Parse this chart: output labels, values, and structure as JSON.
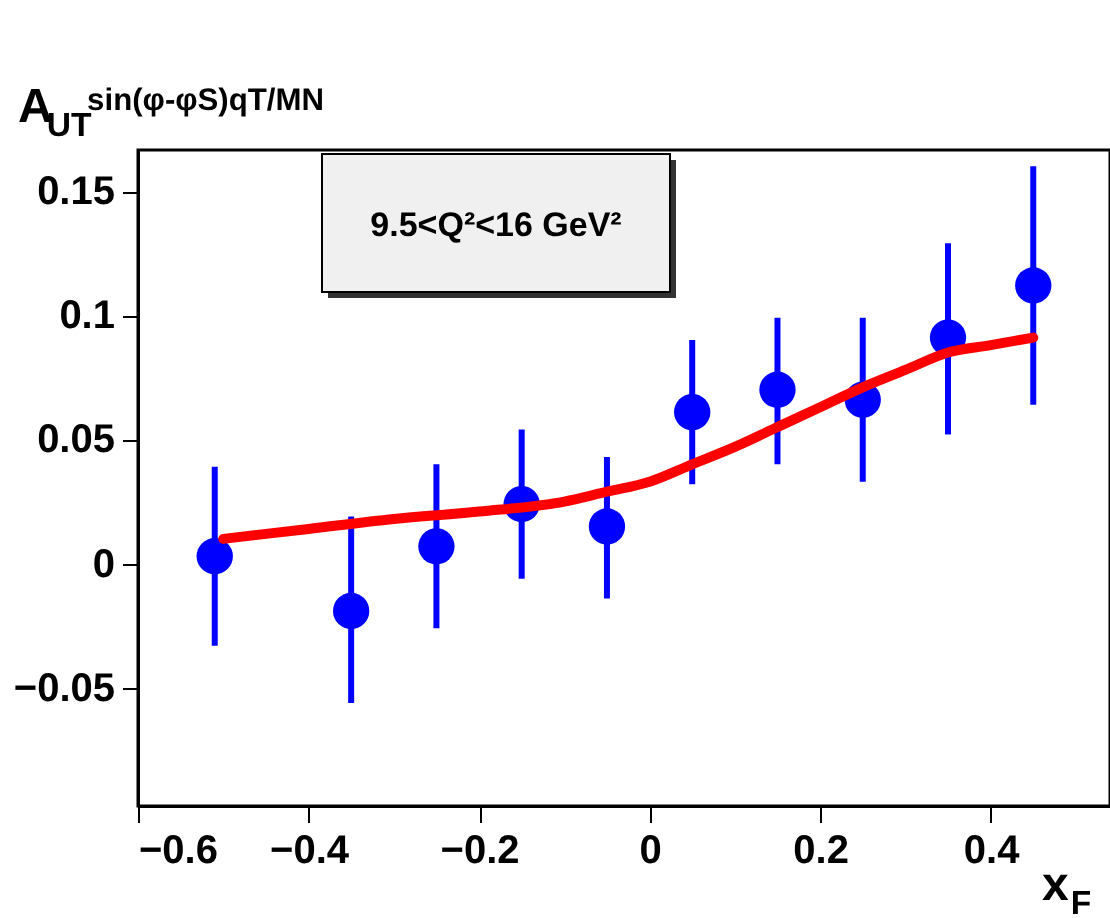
{
  "chart_data": {
    "type": "scatter",
    "xlabel": "x$_{F}$",
    "ylabel": "A$_{UT}$$^{sin(φ-φS)qT/MN}$",
    "annotations": [
      "9.5<Q²<16 GeV²"
    ],
    "xlim": [
      -0.6,
      0.54
    ],
    "ylim": [
      -0.0975,
      0.1665
    ],
    "xticks": [
      -0.6,
      -0.4,
      -0.2,
      0,
      0.2,
      0.4
    ],
    "yticks": [
      -0.05,
      0,
      0.05,
      0.1,
      0.15
    ],
    "grid": false,
    "legend": false,
    "series": [
      {
        "type": "scatter",
        "color": "#0000ff",
        "marker": "circle",
        "x": [
          -0.51,
          -0.35,
          -0.25,
          -0.15,
          -0.05,
          0.05,
          0.15,
          0.25,
          0.35,
          0.45
        ],
        "values": [
          0.003,
          -0.019,
          0.007,
          0.024,
          0.015,
          0.061,
          0.07,
          0.066,
          0.091,
          0.112
        ],
        "errors": [
          [
            -0.033,
            0.039
          ],
          [
            -0.056,
            0.019
          ],
          [
            -0.026,
            0.04
          ],
          [
            -0.006,
            0.054
          ],
          [
            -0.014,
            0.043
          ],
          [
            0.032,
            0.09
          ],
          [
            0.04,
            0.099
          ],
          [
            0.033,
            0.099
          ],
          [
            0.052,
            0.129
          ],
          [
            0.064,
            0.16
          ]
        ]
      },
      {
        "type": "line",
        "color": "#ff0000",
        "line_style": "solid",
        "x": [
          -0.5,
          -0.4,
          -0.3,
          -0.2,
          -0.1,
          -0.05,
          0,
          0.05,
          0.1,
          0.15,
          0.2,
          0.25,
          0.3,
          0.35,
          0.4,
          0.45
        ],
        "values": [
          0.01,
          0.014,
          0.018,
          0.021,
          0.025,
          0.029,
          0.033,
          0.04,
          0.047,
          0.055,
          0.063,
          0.071,
          0.078,
          0.085,
          0.088,
          0.091
        ]
      }
    ]
  }
}
